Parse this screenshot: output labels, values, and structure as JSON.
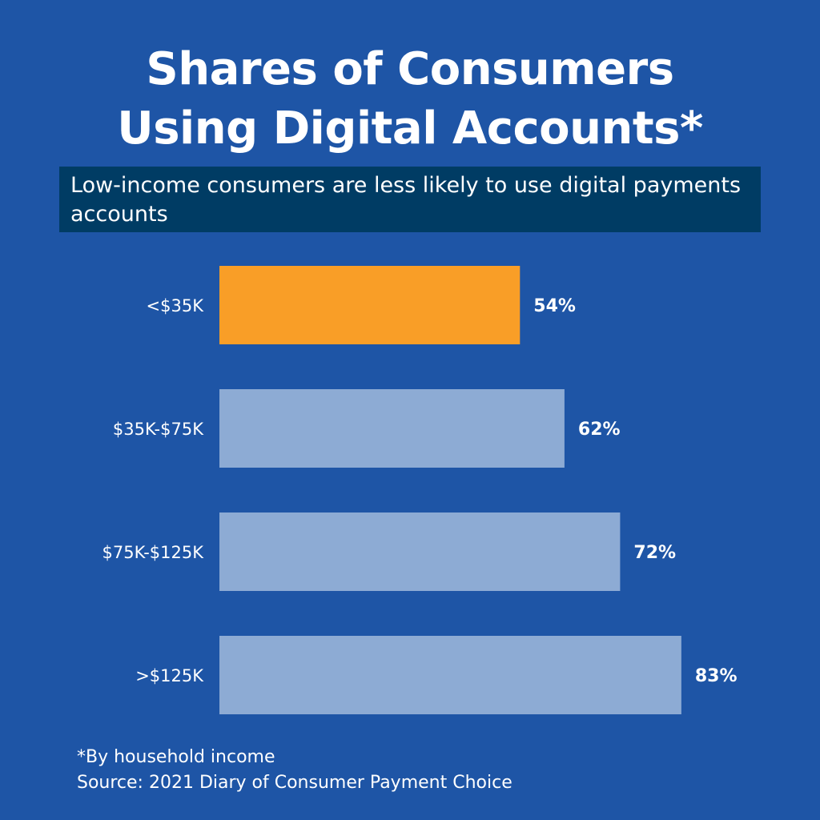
{
  "title": {
    "line1": "Shares of Consumers",
    "line2": "Using Digital Accounts*"
  },
  "subtitle": "Low-income consumers are less likely to use digital payments accounts",
  "footer": {
    "note": "*By household income",
    "source": "Source: 2021 Diary of Consumer Payment Choice"
  },
  "colors": {
    "background": "#1e55a6",
    "highlight_bar": "#f99e27",
    "bar": "#8dabd4",
    "subtitle_box": "#003c64"
  },
  "chart_data": {
    "type": "bar",
    "orientation": "horizontal",
    "categories": [
      "<$35K",
      "$35K-$75K",
      "$75K-$125K",
      ">$125K"
    ],
    "values": [
      54,
      62,
      72,
      83
    ],
    "value_labels": [
      "54%",
      "62%",
      "72%",
      "83%"
    ],
    "highlight_index": 0,
    "xlim": [
      0,
      100
    ],
    "grid": false
  }
}
